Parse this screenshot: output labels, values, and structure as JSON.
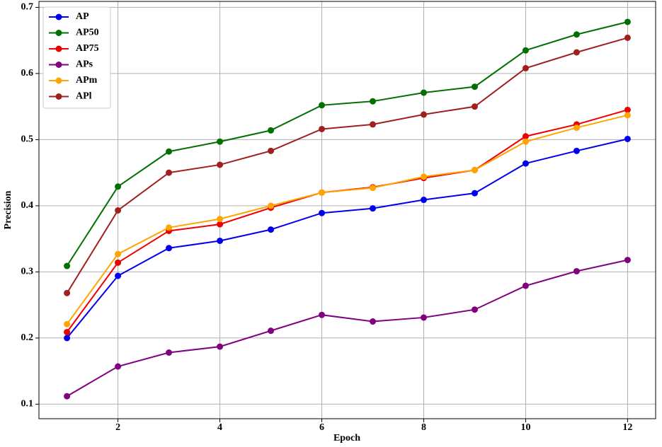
{
  "chart_data": {
    "type": "line",
    "x_label": "Epoch",
    "y_label": "Precision",
    "x": [
      1,
      2,
      3,
      4,
      5,
      6,
      7,
      8,
      9,
      10,
      11,
      12
    ],
    "series": [
      {
        "name": "AP",
        "color": "#0000ee",
        "values": [
          0.2,
          0.294,
          0.336,
          0.347,
          0.364,
          0.389,
          0.396,
          0.409,
          0.419,
          0.464,
          0.483,
          0.501
        ]
      },
      {
        "name": "AP50",
        "color": "#007000",
        "values": [
          0.309,
          0.429,
          0.482,
          0.497,
          0.514,
          0.552,
          0.558,
          0.571,
          0.58,
          0.635,
          0.659,
          0.678
        ]
      },
      {
        "name": "AP75",
        "color": "#ee0000",
        "values": [
          0.209,
          0.314,
          0.362,
          0.372,
          0.397,
          0.42,
          0.428,
          0.442,
          0.454,
          0.505,
          0.523,
          0.545
        ]
      },
      {
        "name": "APs",
        "color": "#800080",
        "values": [
          0.112,
          0.157,
          0.178,
          0.187,
          0.211,
          0.235,
          0.225,
          0.231,
          0.243,
          0.279,
          0.301,
          0.318
        ]
      },
      {
        "name": "APm",
        "color": "#ffa500",
        "values": [
          0.221,
          0.327,
          0.367,
          0.38,
          0.4,
          0.42,
          0.427,
          0.444,
          0.454,
          0.497,
          0.518,
          0.537
        ]
      },
      {
        "name": "APl",
        "color": "#a02020",
        "values": [
          0.268,
          0.393,
          0.45,
          0.462,
          0.483,
          0.516,
          0.523,
          0.538,
          0.55,
          0.608,
          0.632,
          0.654
        ]
      }
    ],
    "xlim": [
      0.45,
      12.55
    ],
    "ylim": [
      0.078,
      0.709
    ],
    "xticks": [
      2,
      4,
      6,
      8,
      10,
      12
    ],
    "yticks": [
      0.1,
      0.2,
      0.3,
      0.4,
      0.5,
      0.6,
      0.7
    ],
    "grid": true,
    "legend": "upper-left"
  }
}
